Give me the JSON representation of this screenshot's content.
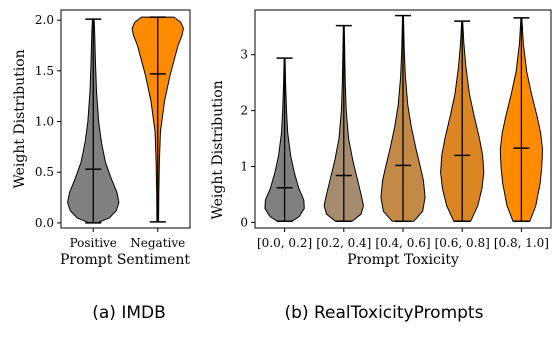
{
  "chart_data": [
    {
      "type": "violin",
      "caption": "(a) IMDB",
      "xlabel": "Prompt Sentiment",
      "ylabel": "Weight Distribution",
      "ylim": [
        -0.05,
        2.1
      ],
      "yticks": [
        "0.0",
        "0.5",
        "1.0",
        "1.5",
        "2.0"
      ],
      "ytick_values": [
        0,
        0.5,
        1.0,
        1.5,
        2.0
      ],
      "categories": [
        "Positive",
        "Negative"
      ],
      "colors": [
        "#808080",
        "#ff8c00"
      ],
      "violins": [
        {
          "min": 0.0,
          "max": 2.01,
          "median": 0.53,
          "profile": [
            [
              0.0,
              0.15
            ],
            [
              0.05,
              0.6
            ],
            [
              0.12,
              0.85
            ],
            [
              0.2,
              0.95
            ],
            [
              0.3,
              0.88
            ],
            [
              0.45,
              0.65
            ],
            [
              0.6,
              0.45
            ],
            [
              0.8,
              0.3
            ],
            [
              1.0,
              0.2
            ],
            [
              1.3,
              0.12
            ],
            [
              1.6,
              0.08
            ],
            [
              1.9,
              0.05
            ],
            [
              2.01,
              0.03
            ]
          ]
        },
        {
          "min": 0.01,
          "max": 2.03,
          "median": 1.47,
          "profile": [
            [
              0.01,
              0.03
            ],
            [
              0.3,
              0.04
            ],
            [
              0.6,
              0.06
            ],
            [
              0.9,
              0.1
            ],
            [
              1.2,
              0.25
            ],
            [
              1.45,
              0.45
            ],
            [
              1.6,
              0.6
            ],
            [
              1.75,
              0.75
            ],
            [
              1.85,
              0.9
            ],
            [
              1.92,
              0.95
            ],
            [
              1.98,
              0.85
            ],
            [
              2.03,
              0.6
            ]
          ]
        }
      ]
    },
    {
      "type": "violin",
      "caption": "(b) RealToxicityPrompts",
      "xlabel": "Prompt Toxicity",
      "ylabel": "Weight Distribution",
      "ylim": [
        -0.1,
        3.8
      ],
      "yticks": [
        "0",
        "1",
        "2",
        "3"
      ],
      "ytick_values": [
        0,
        1,
        2,
        3
      ],
      "categories": [
        "[0.0, 0.2]",
        "[0.2, 0.4]",
        "[0.4, 0.6]",
        "[0.6, 0.8]",
        "[0.8, 1.0]"
      ],
      "colors": [
        "#808080",
        "#a58c6e",
        "#c28a46",
        "#db8622",
        "#ff8c00"
      ],
      "violins": [
        {
          "min": 0.02,
          "max": 2.94,
          "median": 0.62,
          "profile": [
            [
              0.02,
              0.3
            ],
            [
              0.1,
              0.6
            ],
            [
              0.25,
              0.82
            ],
            [
              0.4,
              0.8
            ],
            [
              0.6,
              0.6
            ],
            [
              0.9,
              0.4
            ],
            [
              1.2,
              0.25
            ],
            [
              1.6,
              0.13
            ],
            [
              2.0,
              0.08
            ],
            [
              2.5,
              0.04
            ],
            [
              2.94,
              0.02
            ]
          ]
        },
        {
          "min": 0.02,
          "max": 3.52,
          "median": 0.84,
          "profile": [
            [
              0.02,
              0.35
            ],
            [
              0.15,
              0.72
            ],
            [
              0.3,
              0.82
            ],
            [
              0.5,
              0.72
            ],
            [
              0.8,
              0.55
            ],
            [
              1.1,
              0.38
            ],
            [
              1.5,
              0.2
            ],
            [
              2.0,
              0.1
            ],
            [
              2.5,
              0.06
            ],
            [
              3.0,
              0.04
            ],
            [
              3.52,
              0.02
            ]
          ]
        },
        {
          "min": 0.02,
          "max": 3.7,
          "median": 1.02,
          "profile": [
            [
              0.02,
              0.45
            ],
            [
              0.2,
              0.82
            ],
            [
              0.45,
              0.92
            ],
            [
              0.75,
              0.85
            ],
            [
              1.0,
              0.72
            ],
            [
              1.3,
              0.55
            ],
            [
              1.7,
              0.35
            ],
            [
              2.1,
              0.2
            ],
            [
              2.6,
              0.1
            ],
            [
              3.1,
              0.05
            ],
            [
              3.7,
              0.02
            ]
          ]
        },
        {
          "min": 0.02,
          "max": 3.6,
          "median": 1.2,
          "profile": [
            [
              0.02,
              0.35
            ],
            [
              0.3,
              0.65
            ],
            [
              0.6,
              0.82
            ],
            [
              0.9,
              0.9
            ],
            [
              1.2,
              0.85
            ],
            [
              1.5,
              0.72
            ],
            [
              1.9,
              0.5
            ],
            [
              2.3,
              0.3
            ],
            [
              2.8,
              0.15
            ],
            [
              3.2,
              0.07
            ],
            [
              3.6,
              0.02
            ]
          ]
        },
        {
          "min": 0.02,
          "max": 3.66,
          "median": 1.33,
          "profile": [
            [
              0.02,
              0.35
            ],
            [
              0.3,
              0.6
            ],
            [
              0.7,
              0.78
            ],
            [
              1.0,
              0.85
            ],
            [
              1.3,
              0.88
            ],
            [
              1.6,
              0.8
            ],
            [
              1.9,
              0.65
            ],
            [
              2.3,
              0.42
            ],
            [
              2.7,
              0.22
            ],
            [
              3.2,
              0.08
            ],
            [
              3.66,
              0.02
            ]
          ]
        }
      ]
    }
  ]
}
